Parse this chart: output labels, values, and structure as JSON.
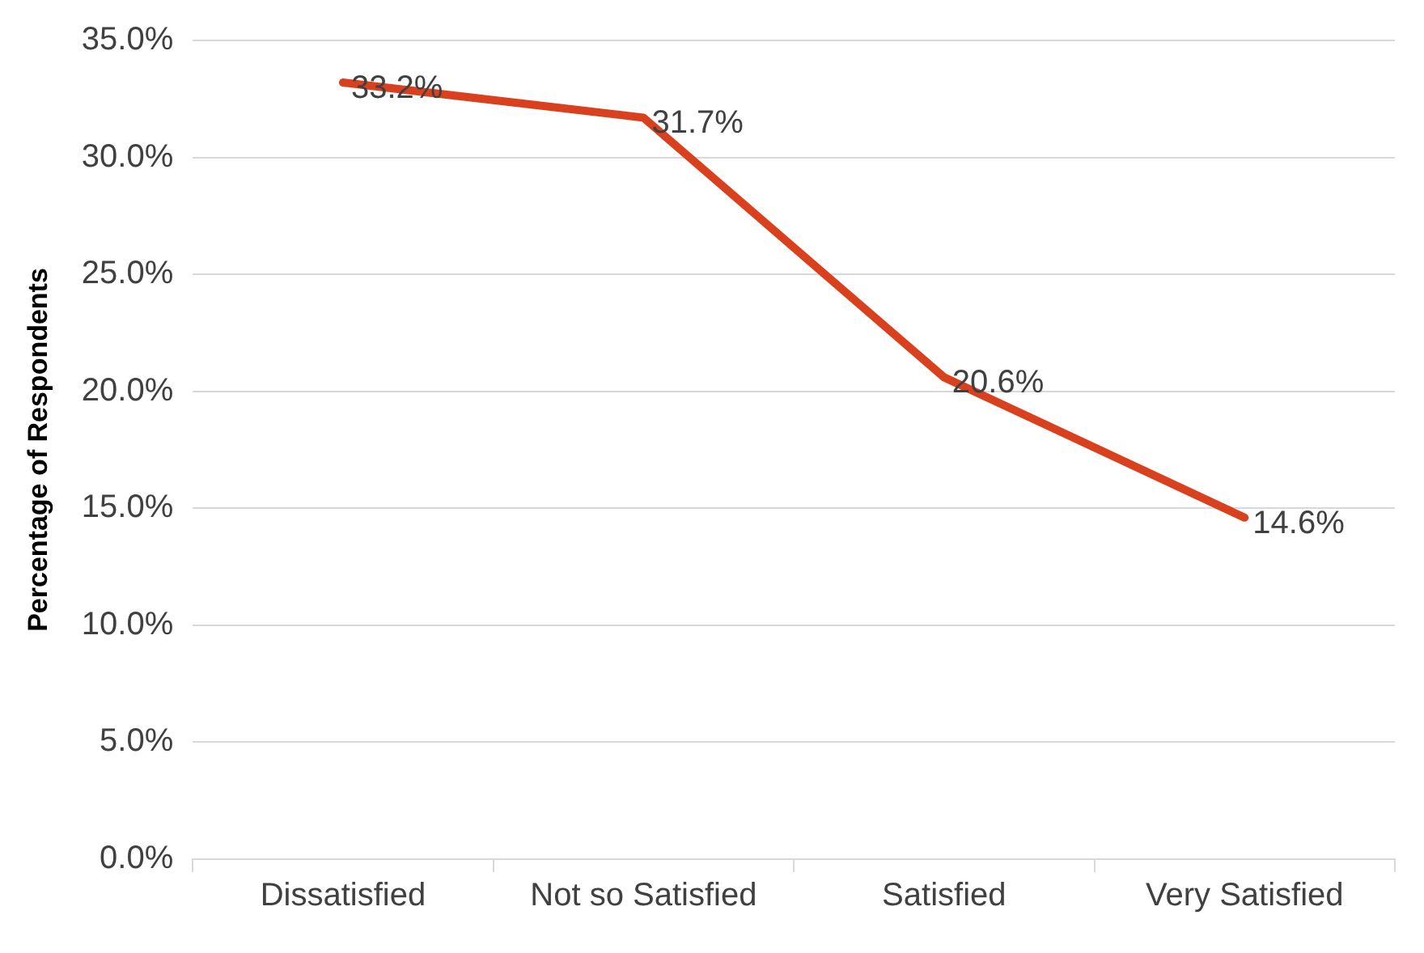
{
  "chart_data": {
    "type": "line",
    "ylabel": "Percentage of Respondents",
    "categories": [
      "Dissatisfied",
      "Not so Satisfied",
      "Satisfied",
      "Very Satisfied"
    ],
    "series": [
      {
        "color": "#d9411e",
        "values": [
          33.2,
          31.7,
          20.6,
          14.6
        ],
        "value_labels": [
          "33.2%",
          "31.7%",
          "20.6%",
          "14.6%"
        ]
      }
    ],
    "ylim": [
      0,
      35
    ],
    "yticks": [
      {
        "value": 0,
        "label": "0.0%"
      },
      {
        "value": 5,
        "label": "5.0%"
      },
      {
        "value": 10,
        "label": "10.0%"
      },
      {
        "value": 15,
        "label": "15.0%"
      },
      {
        "value": 20,
        "label": "20.0%"
      },
      {
        "value": 25,
        "label": "25.0%"
      },
      {
        "value": 30,
        "label": "30.0%"
      },
      {
        "value": 35,
        "label": "35.0%"
      }
    ],
    "grid": "y",
    "legend": false,
    "marker": "none",
    "line_style": "solid"
  }
}
